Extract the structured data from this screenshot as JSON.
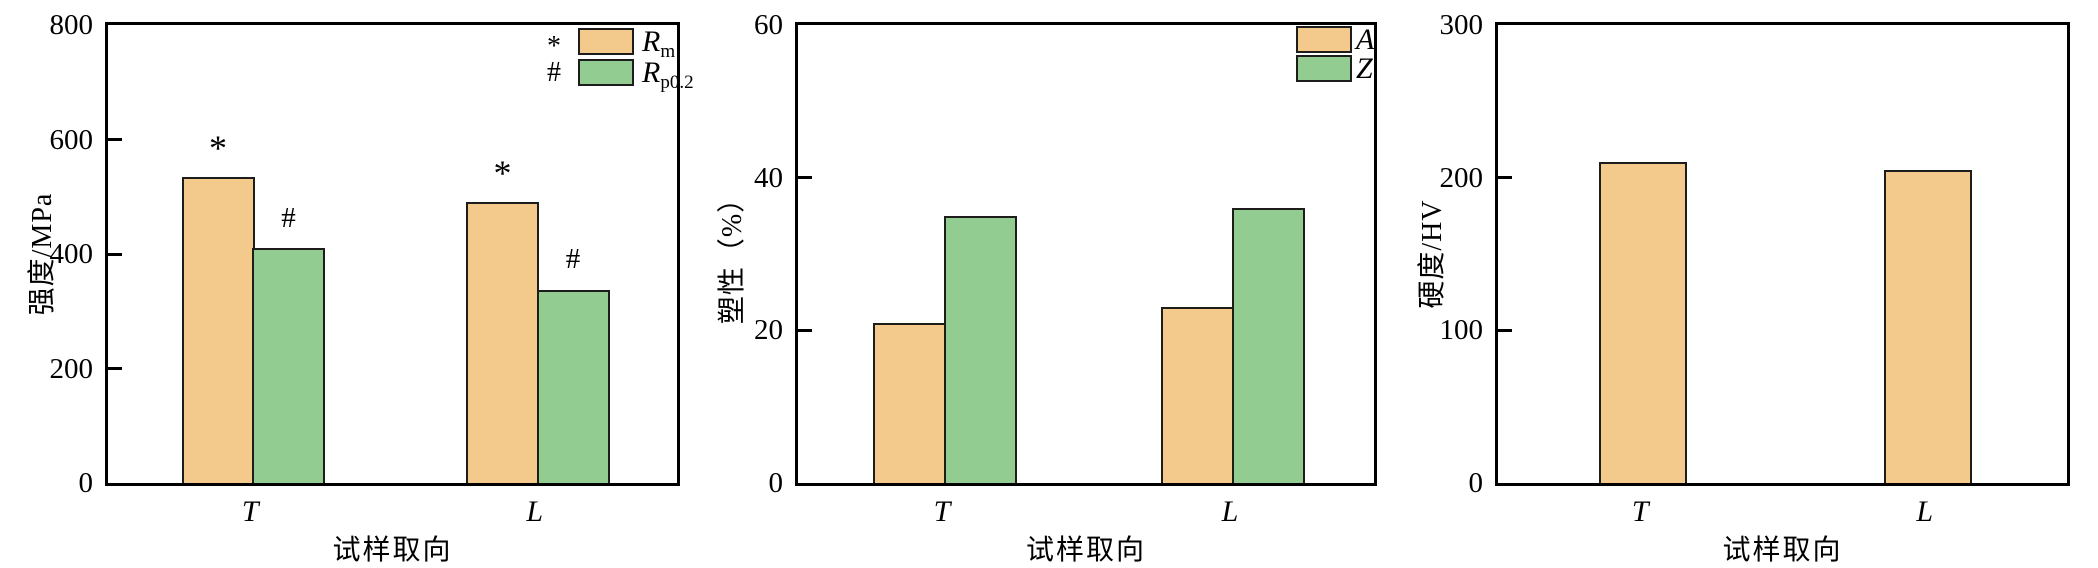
{
  "page": {
    "background": "#ffffff"
  },
  "colors": {
    "orange": "#f4c98c",
    "green": "#92cc90",
    "bar_border": "#1d1d1b",
    "axis": "#000000"
  },
  "chart_data": [
    {
      "type": "bar",
      "id": "strength",
      "title": "",
      "ylabel": "强度/MPa",
      "xlabel": "试样取向",
      "ylim": [
        0,
        800
      ],
      "yticks": [
        "0",
        "200",
        "400",
        "600",
        "800"
      ],
      "categories": [
        "T",
        "L"
      ],
      "series": [
        {
          "name": "Rm",
          "label_main": "R",
          "label_sub": "m",
          "marker": "*",
          "color": "orange",
          "values": [
            535,
            490
          ]
        },
        {
          "name": "Rp0.2",
          "label_main": "R",
          "label_sub": "p0.2",
          "marker": "#",
          "color": "green",
          "values": [
            410,
            338
          ]
        }
      ],
      "legend": {
        "show": true,
        "show_markers": true,
        "position": "top-right"
      },
      "annotations": true,
      "grid": false
    },
    {
      "type": "bar",
      "id": "plasticity",
      "title": "",
      "ylabel": "塑性（%）",
      "xlabel": "试样取向",
      "ylim": [
        0,
        60
      ],
      "yticks": [
        "0",
        "20",
        "40",
        "60"
      ],
      "categories": [
        "T",
        "L"
      ],
      "series": [
        {
          "name": "A",
          "label_main": "A",
          "label_sub": "",
          "marker": "",
          "color": "orange",
          "values": [
            21,
            23
          ]
        },
        {
          "name": "Z",
          "label_main": "Z",
          "label_sub": "",
          "marker": "",
          "color": "green",
          "values": [
            35,
            36
          ]
        }
      ],
      "legend": {
        "show": true,
        "show_markers": false,
        "position": "top-right"
      },
      "annotations": false,
      "grid": false
    },
    {
      "type": "bar",
      "id": "hardness",
      "title": "",
      "ylabel": "硬度/HV",
      "xlabel": "试样取向",
      "ylim": [
        0,
        300
      ],
      "yticks": [
        "0",
        "100",
        "200",
        "300"
      ],
      "categories": [
        "T",
        "L"
      ],
      "series": [
        {
          "name": "HV",
          "label_main": "",
          "label_sub": "",
          "marker": "",
          "color": "orange",
          "values": [
            210,
            205
          ]
        }
      ],
      "legend": {
        "show": false,
        "show_markers": false,
        "position": "none"
      },
      "annotations": false,
      "grid": false
    }
  ]
}
